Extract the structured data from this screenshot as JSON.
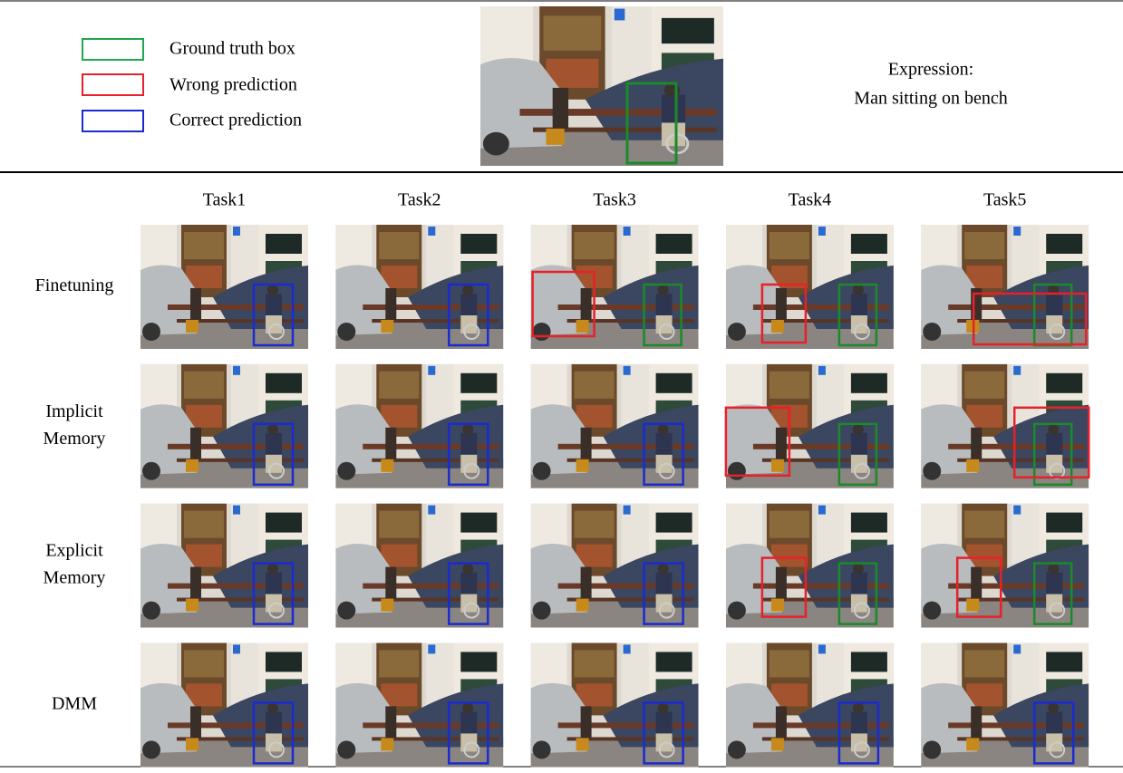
{
  "legend": [
    "Ground truth box",
    "Wrong prediction",
    "Correct prediction"
  ],
  "expression": {
    "label": "Expression:",
    "text": "Man sitting on bench"
  },
  "tasks": [
    "Task1",
    "Task2",
    "Task3",
    "Task4",
    "Task5"
  ],
  "methods": [
    [
      "Finetuning"
    ],
    [
      "Implicit",
      "Memory"
    ],
    [
      "Explicit",
      "Memory"
    ],
    [
      "DMM"
    ]
  ]
}
